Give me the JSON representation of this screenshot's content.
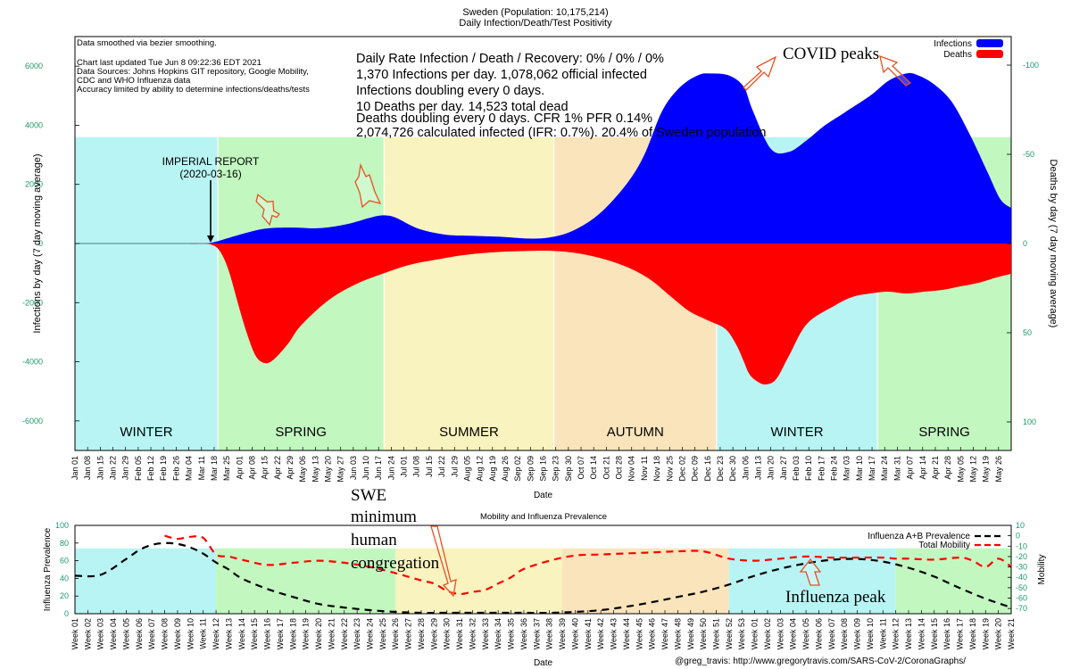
{
  "chart_data": [
    {
      "type": "area",
      "title": "Sweden (Population: 10,175,214)",
      "subtitle": "Daily Infection/Death/Test Positivity",
      "xlabel": "Date",
      "ylabel_left": "Infections by day (7 day moving average)",
      "ylabel_right": "Deaths by day (7 day moving average)",
      "ylim_left": [
        -7000,
        7000
      ],
      "yticks_left": [
        6000,
        4000,
        2000,
        0,
        -2000,
        -4000,
        -6000
      ],
      "ylim_right": [
        -116,
        116
      ],
      "yticks_right_labels": [
        "-100",
        "-50",
        "0",
        "50",
        "100"
      ],
      "yticks_right_values": [
        -100,
        -50,
        0,
        50,
        100
      ],
      "x_range_days": [
        0,
        518
      ],
      "x_tick_labels": [
        "Jan 01",
        "Jan 08",
        "Jan 15",
        "Jan 22",
        "Jan 29",
        "Feb 05",
        "Feb 12",
        "Feb 19",
        "Feb 26",
        "Mar 04",
        "Mar 11",
        "Mar 18",
        "Mar 25",
        "Apr 01",
        "Apr 08",
        "Apr 15",
        "Apr 22",
        "Apr 29",
        "May 06",
        "May 13",
        "May 20",
        "May 27",
        "Jun 03",
        "Jun 10",
        "Jun 17",
        "Jun 24",
        "Jul 01",
        "Jul 08",
        "Jul 15",
        "Jul 22",
        "Jul 29",
        "Aug 05",
        "Aug 12",
        "Aug 19",
        "Aug 26",
        "Sep 02",
        "Sep 09",
        "Sep 16",
        "Sep 23",
        "Sep 30",
        "Oct 07",
        "Oct 14",
        "Oct 21",
        "Oct 28",
        "Nov 04",
        "Nov 11",
        "Nov 18",
        "Nov 25",
        "Dec 02",
        "Dec 09",
        "Dec 16",
        "Dec 23",
        "Dec 30",
        "Jan 06",
        "Jan 13",
        "Jan 20",
        "Jan 27",
        "Feb 03",
        "Feb 10",
        "Feb 17",
        "Feb 24",
        "Mar 03",
        "Mar 10",
        "Mar 17",
        "Mar 24",
        "Mar 31",
        "Apr 07",
        "Apr 14",
        "Apr 21",
        "Apr 28",
        "May 05",
        "May 12",
        "May 19",
        "May 26"
      ],
      "seasons": [
        {
          "label": "WINTER",
          "start_day": 0,
          "end_day": 79,
          "color": "#b8f4f4"
        },
        {
          "label": "SPRING",
          "start_day": 79,
          "end_day": 171,
          "color": "#c2f7c0"
        },
        {
          "label": "SUMMER",
          "start_day": 171,
          "end_day": 265,
          "color": "#f9f3bf"
        },
        {
          "label": "AUTUMN",
          "start_day": 265,
          "end_day": 355,
          "color": "#f9e4bc"
        },
        {
          "label": "WINTER",
          "start_day": 355,
          "end_day": 444,
          "color": "#b8f4f4"
        },
        {
          "label": "SPRING",
          "start_day": 444,
          "end_day": 518,
          "color": "#c2f7c0"
        }
      ],
      "series": [
        {
          "name": "Infections",
          "color": "#0000ff",
          "x_days": [
            0,
            55,
            68,
            76,
            90,
            105,
            120,
            135,
            150,
            165,
            172,
            178,
            190,
            205,
            220,
            235,
            250,
            262,
            275,
            290,
            305,
            315,
            325,
            335,
            345,
            352,
            362,
            370,
            375,
            385,
            395,
            405,
            415,
            425,
            440,
            450,
            460,
            466,
            475,
            485,
            495,
            505,
            512,
            518
          ],
          "values": [
            0,
            0,
            0,
            30,
            280,
            500,
            540,
            520,
            650,
            900,
            950,
            860,
            500,
            300,
            260,
            230,
            170,
            200,
            420,
            1000,
            2000,
            3000,
            4500,
            5300,
            5700,
            5750,
            5680,
            5300,
            4500,
            3200,
            3100,
            3500,
            4000,
            4400,
            5000,
            5500,
            5750,
            5700,
            5400,
            4800,
            3700,
            2400,
            1500,
            1200
          ]
        },
        {
          "name": "Deaths",
          "color": "#ff0000",
          "x_days": [
            0,
            60,
            68,
            75,
            80,
            85,
            90,
            95,
            100,
            105,
            110,
            118,
            125,
            140,
            155,
            170,
            185,
            200,
            215,
            230,
            245,
            260,
            275,
            290,
            305,
            318,
            330,
            340,
            350,
            360,
            366,
            370,
            373,
            377,
            382,
            388,
            395,
            405,
            420,
            430,
            440,
            450,
            460,
            470,
            480,
            490,
            500,
            510,
            518
          ],
          "values": [
            0,
            0,
            0,
            0.5,
            4,
            15,
            33,
            50,
            63,
            67,
            65,
            56,
            46,
            32,
            23,
            17,
            12,
            9,
            6.5,
            5,
            4.3,
            4,
            5,
            8,
            13,
            20,
            30,
            38,
            43,
            48,
            57,
            66,
            73,
            77,
            79,
            76,
            63,
            45,
            35,
            30,
            28,
            27,
            28,
            27,
            26,
            24,
            22,
            19,
            17
          ]
        }
      ],
      "legend": [
        "Infections",
        "Deaths"
      ],
      "legend_position": "top-right",
      "info_small": [
        "Data smoothed via bezier smoothing.",
        "Chart last updated Tue Jun  8 09:22:36 EDT 2021",
        "Data Sources: Johns Hopkins GIT repository, Google Mobility,",
        "CDC and WHO Influenza data",
        "Accuracy limited by ability to determine infections/deaths/tests"
      ],
      "info_large": [
        "Daily Rate Infection / Death / Recovery: 0% / 0% / 0%",
        "1,370 Infections per day.  1,078,062 official infected",
        "Infections doubling every 0 days.",
        "10 Deaths per day.  14,523 total dead",
        "Deaths doubling every 0 days.  CFR 1%  PFR 0.14%",
        "2,074,726 calculated infected (IFR: 0.7%).  20.4% of Sweden population"
      ],
      "annotations": {
        "imperial_1": "IMPERIAL REPORT",
        "imperial_2": "(2020-03-16)",
        "covid_peaks": "COVID peaks"
      }
    },
    {
      "type": "line",
      "title": "Mobility and Influenza Prevalence",
      "xlabel": "Date",
      "ylabel_left": "Influenza Prevalence",
      "ylabel_right": "Mobility",
      "ylim_left": [
        0,
        100
      ],
      "yticks_left": [
        0,
        20,
        40,
        60,
        80,
        100
      ],
      "ylim_right": [
        -75,
        10
      ],
      "yticks_right": [
        10,
        0,
        -10,
        -20,
        -30,
        -40,
        -50,
        -60,
        -70
      ],
      "x_range_weeks": [
        1,
        74
      ],
      "x_tick_labels": [
        "Week 01",
        "Week 02",
        "Week 03",
        "Week 04",
        "Week 05",
        "Week 06",
        "Week 07",
        "Week 08",
        "Week 09",
        "Week 10",
        "Week 11",
        "Week 12",
        "Week 13",
        "Week 14",
        "Week 15",
        "Week 16",
        "Week 17",
        "Week 18",
        "Week 19",
        "Week 20",
        "Week 21",
        "Week 22",
        "Week 23",
        "Week 24",
        "Week 25",
        "Week 26",
        "Week 27",
        "Week 28",
        "Week 29",
        "Week 30",
        "Week 31",
        "Week 32",
        "Week 33",
        "Week 34",
        "Week 35",
        "Week 36",
        "Week 37",
        "Week 38",
        "Week 39",
        "Week 40",
        "Week 41",
        "Week 42",
        "Week 43",
        "Week 44",
        "Week 45",
        "Week 46",
        "Week 47",
        "Week 48",
        "Week 49",
        "Week 50",
        "Week 51",
        "Week 52",
        "Week 53",
        "Week 01",
        "Week 02",
        "Week 03",
        "Week 04",
        "Week 05",
        "Week 06",
        "Week 07",
        "Week 08",
        "Week 09",
        "Week 10",
        "Week 11",
        "Week 12",
        "Week 13",
        "Week 14",
        "Week 15",
        "Week 16",
        "Week 17",
        "Week 18",
        "Week 19",
        "Week 20",
        "Week 21"
      ],
      "seasons": [
        {
          "start_week": 1,
          "end_week": 12,
          "color": "#b8f4f4"
        },
        {
          "start_week": 12,
          "end_week": 26,
          "color": "#c2f7c0"
        },
        {
          "start_week": 26,
          "end_week": 39,
          "color": "#f9f3bf"
        },
        {
          "start_week": 39,
          "end_week": 52,
          "color": "#f9e4bc"
        },
        {
          "start_week": 52,
          "end_week": 65,
          "color": "#b8f4f4"
        },
        {
          "start_week": 65,
          "end_week": 74,
          "color": "#c2f7c0"
        }
      ],
      "series": [
        {
          "name": "Influenza A+B Prevalence",
          "color": "#000000",
          "x": [
            1,
            3,
            5,
            6,
            7,
            8,
            9,
            10,
            11,
            12,
            13,
            14,
            16,
            18,
            20,
            22,
            24,
            26,
            28,
            30,
            32,
            34,
            36,
            38,
            40,
            42,
            44,
            46,
            48,
            50,
            52,
            54,
            56,
            58,
            60,
            62,
            64,
            66,
            68,
            70,
            72,
            74
          ],
          "values": [
            43,
            44,
            62,
            72,
            78,
            80,
            79,
            75,
            68,
            58,
            50,
            40,
            28,
            19,
            11,
            7,
            4,
            2,
            1,
            1,
            1,
            1,
            1,
            1,
            2,
            4,
            8,
            13,
            19,
            25,
            33,
            43,
            51,
            57,
            61,
            62,
            59,
            52,
            42,
            29,
            17,
            7
          ]
        },
        {
          "name": "Total Mobility",
          "color": "#ff0000",
          "x": [
            8,
            9,
            10,
            11,
            12,
            13,
            14,
            16,
            18,
            20,
            22,
            24,
            26,
            28,
            29,
            30,
            31,
            32,
            33,
            34,
            35,
            36,
            38,
            40,
            42,
            44,
            46,
            48,
            50,
            52,
            54,
            56,
            58,
            60,
            62,
            64,
            65,
            66,
            68,
            70,
            71,
            72,
            73,
            74
          ],
          "values": [
            0,
            -3,
            -1,
            -2,
            -18,
            -20,
            -23,
            -28,
            -26,
            -24,
            -26,
            -30,
            -36,
            -43,
            -46,
            -53,
            -56,
            -54,
            -52,
            -46,
            -40,
            -32,
            -24,
            -19,
            -18,
            -17,
            -16,
            -15,
            -15,
            -22,
            -24,
            -22,
            -20,
            -21,
            -21,
            -21,
            -22,
            -22,
            -23,
            -21,
            -24,
            -30,
            -22,
            -30
          ]
        }
      ],
      "legend_position": "top-right"
    }
  ],
  "annotations": {
    "swe_1": "SWE",
    "swe_2": "minimum",
    "swe_3": "human",
    "swe_4": "congregation",
    "influenza_peak": "Influenza peak"
  },
  "footer": "@greg_travis: http://www.gregorytravis.com/SARS-CoV-2/CoronaGraphs/"
}
